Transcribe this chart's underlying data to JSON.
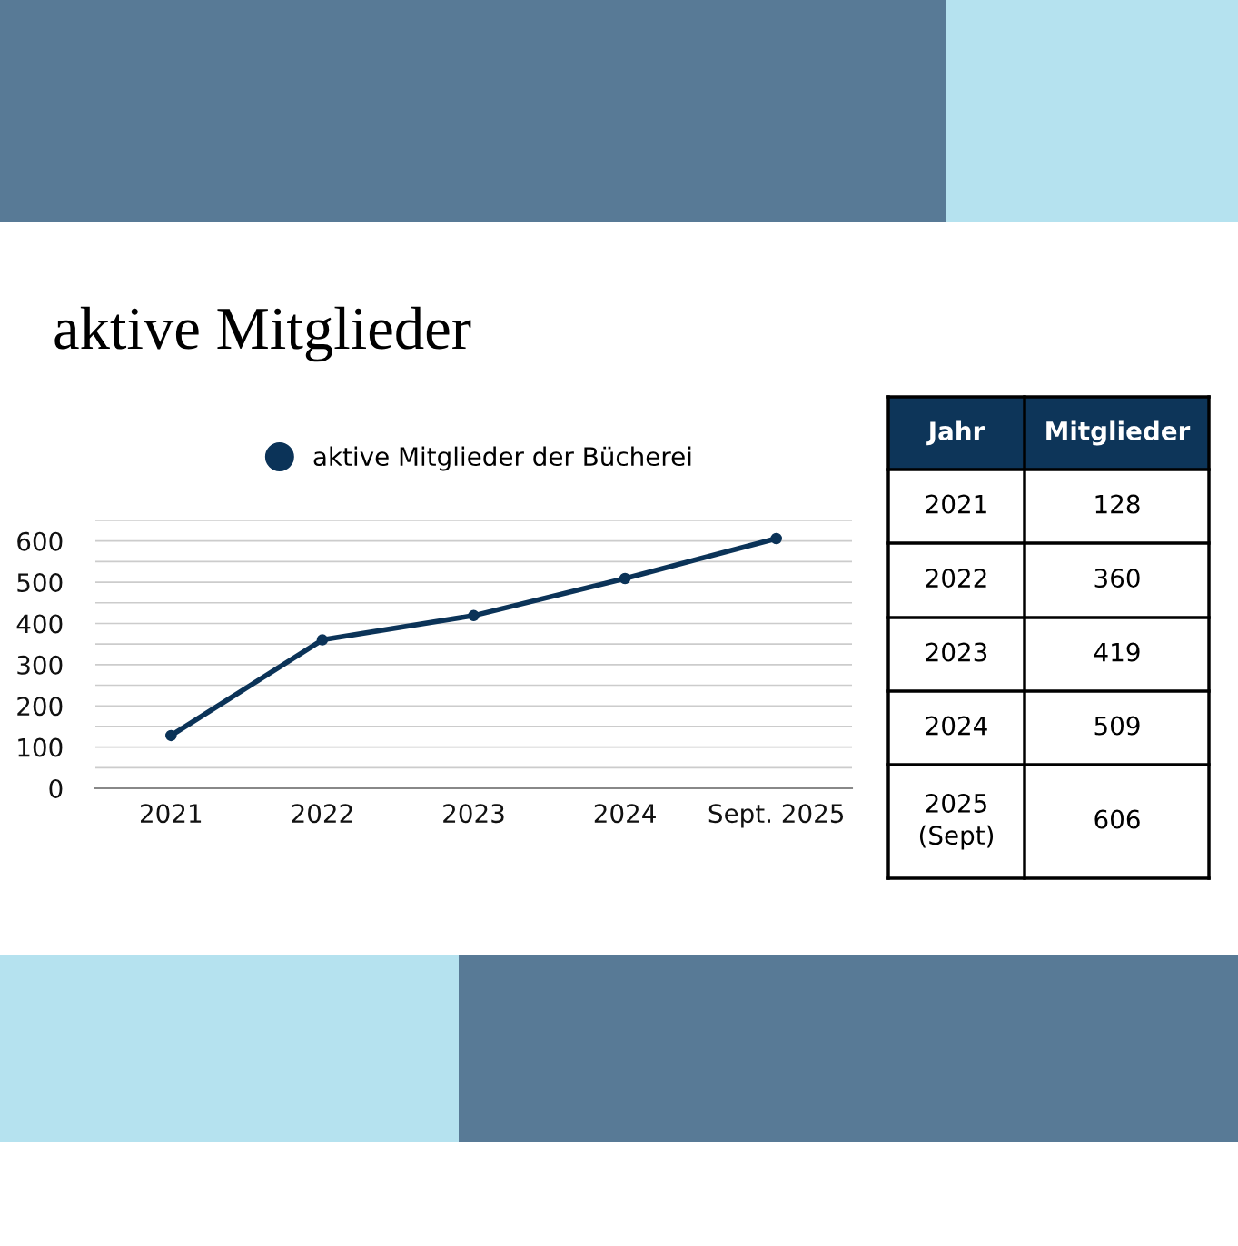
{
  "chart_data": {
    "type": "line",
    "title": "aktive Mitglieder",
    "categories": [
      "2021",
      "2022",
      "2023",
      "2024",
      "Sept. 2025"
    ],
    "series": [
      {
        "name": "aktive Mitglieder der Bücherei",
        "color": "#0b3358",
        "values": [
          128,
          360,
          419,
          509,
          606
        ]
      }
    ],
    "ylim": [
      0,
      650
    ],
    "yticks": [
      0,
      {
        "value": 50,
        "label": null
      },
      100,
      {
        "value": 150,
        "label": null
      },
      200,
      {
        "value": 250,
        "label": null
      },
      300,
      {
        "value": 350,
        "label": null
      },
      400,
      {
        "value": 450,
        "label": null
      },
      500,
      {
        "value": 550,
        "label": null
      },
      600,
      {
        "value": 650,
        "label": null
      }
    ],
    "grid": "y",
    "legend": "top",
    "marker": "circle",
    "line_style": "solid",
    "annotations": [
      "Jahr",
      "Mitglieder",
      "2021",
      "128",
      "2022",
      "360",
      "2023",
      "419",
      "2024",
      "509",
      "2025\n(Sept)",
      "606"
    ]
  }
}
